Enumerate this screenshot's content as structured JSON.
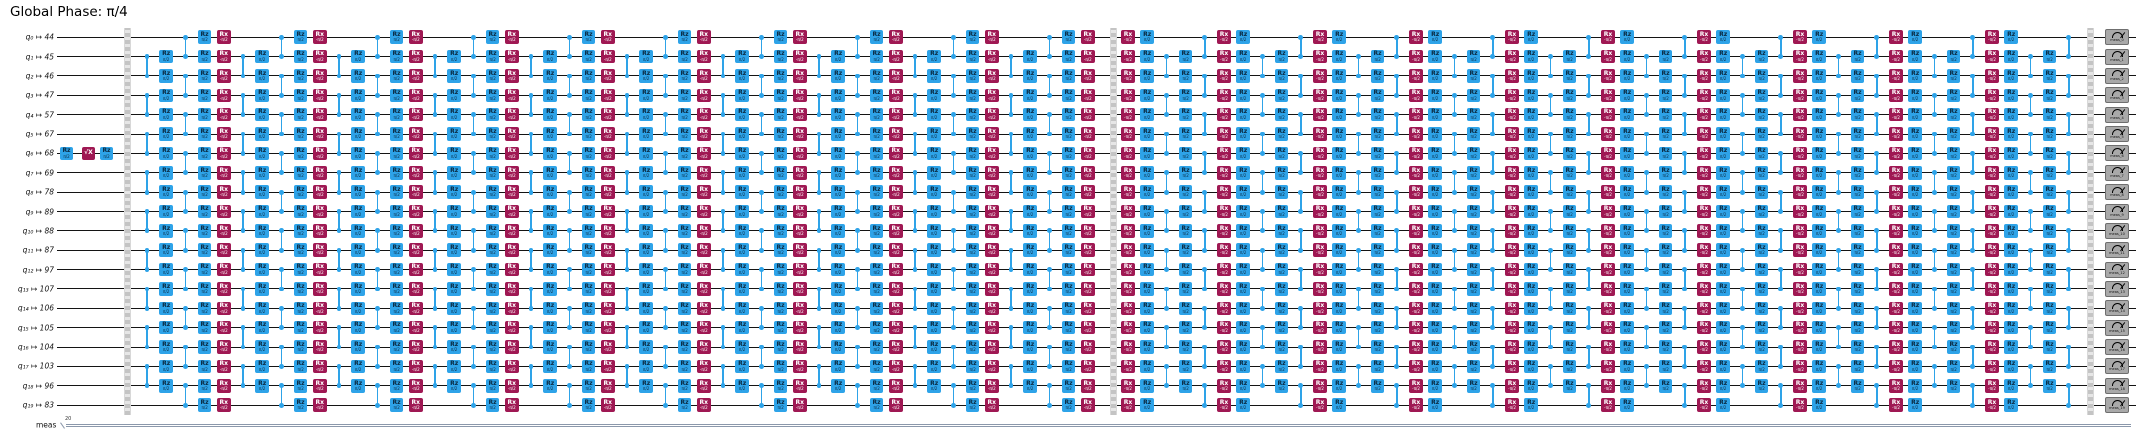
{
  "title": "Global Phase: π/4",
  "qubit_labels": [
    "q₀ ↦ 44",
    "q₁ ↦ 45",
    "q₂ ↦ 46",
    "q₃ ↦ 47",
    "q₄ ↦ 57",
    "q₅ ↦ 67",
    "q₆ ↦ 68",
    "q₇ ↦ 69",
    "q₈ ↦ 78",
    "q₉ ↦ 89",
    "q₁₀ ↦ 88",
    "q₁₁ ↦ 87",
    "q₁₂ ↦ 97",
    "q₁₃ ↦ 107",
    "q₁₄ ↦ 106",
    "q₁₅ ↦ 105",
    "q₁₆ ↦ 104",
    "q₁₇ ↦ 103",
    "q₁₈ ↦ 96",
    "q₁₉ ↦ 83"
  ],
  "creg": {
    "label": "meas",
    "size": "20"
  },
  "gates": {
    "rz": {
      "label": "Rz",
      "sub": "π/2"
    },
    "rx": {
      "label": "Rx",
      "sub": "-π/2"
    },
    "sx": {
      "label": "√X",
      "sub": ""
    }
  },
  "prelude": {
    "qubit": 6,
    "sequence": [
      "rz",
      "sx",
      "rz"
    ]
  },
  "layers": {
    "rz_all": {
      "type": "gate",
      "gate": "rz",
      "qubits": [
        0,
        1,
        2,
        3,
        4,
        5,
        6,
        7,
        8,
        9,
        10,
        11,
        12,
        13,
        14,
        15,
        16,
        17,
        18,
        19
      ]
    },
    "rx_all": {
      "type": "gate",
      "gate": "rx",
      "qubits": [
        0,
        1,
        2,
        3,
        4,
        5,
        6,
        7,
        8,
        9,
        10,
        11,
        12,
        13,
        14,
        15,
        16,
        17,
        18,
        19
      ]
    },
    "rz_mid": {
      "type": "gate",
      "gate": "rz",
      "qubits": [
        1,
        2,
        3,
        4,
        5,
        6,
        7,
        8,
        9,
        10,
        11,
        12,
        13,
        14,
        15,
        16,
        17,
        18
      ]
    },
    "cz_odd": {
      "type": "cz",
      "pairs": [
        [
          1,
          2
        ],
        [
          3,
          4
        ],
        [
          5,
          6
        ],
        [
          7,
          8
        ],
        [
          9,
          10
        ],
        [
          11,
          12
        ],
        [
          13,
          14
        ],
        [
          15,
          16
        ],
        [
          17,
          18
        ]
      ]
    },
    "cz_even": {
      "type": "cz",
      "pairs": [
        [
          0,
          1
        ],
        [
          2,
          3
        ],
        [
          4,
          5
        ],
        [
          6,
          7
        ],
        [
          8,
          9
        ],
        [
          10,
          11
        ],
        [
          12,
          13
        ],
        [
          14,
          15
        ],
        [
          16,
          17
        ],
        [
          18,
          19
        ]
      ]
    }
  },
  "sections": [
    {
      "motif": [
        "cz_odd",
        "rz_mid",
        "cz_even",
        "rz_all",
        "rx_all"
      ],
      "periods": 10
    },
    {
      "motif": [
        "rx_all",
        "rz_all",
        "cz_odd",
        "rz_mid",
        "cz_even"
      ],
      "periods": 10
    }
  ],
  "measure_labels": [
    "meas_0",
    "meas_1",
    "meas_2",
    "meas_3",
    "meas_4",
    "meas_5",
    "meas_6",
    "meas_7",
    "meas_8",
    "meas_9",
    "meas_10",
    "meas_11",
    "meas_12",
    "meas_13",
    "meas_14",
    "meas_15",
    "meas_16",
    "meas_17",
    "meas_18",
    "meas_19"
  ],
  "colors": {
    "gate_blue": "#2ea3e8",
    "gate_crimson": "#9f1853",
    "text_on_blue": "#0a2940",
    "text_on_crimson": "#ffffff",
    "wire": "#141414",
    "barrier_gray": "#c4c4c4",
    "measure_fill": "#a9a9a9",
    "measure_border": "#6f6f6f",
    "creg_wire": "#8b98ab",
    "background": "#ffffff"
  }
}
